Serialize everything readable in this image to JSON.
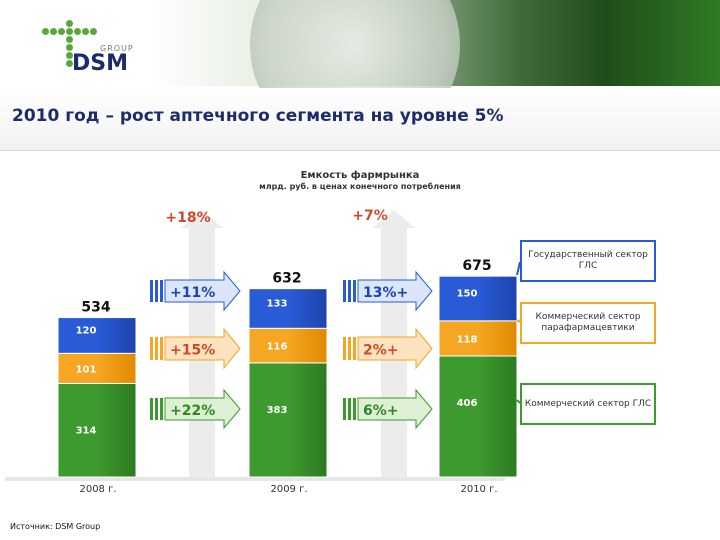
{
  "header": {
    "logo_group": "GROUP",
    "logo_name": "DSM"
  },
  "title": "2010 год – рост аптечного сегмента на уровне 5%",
  "source": "Источник: DSM Group",
  "colors": {
    "gov": "#2a5bd6",
    "para": "#f5a623",
    "com": "#3d9a2e",
    "title": "#1b2c6b"
  },
  "chart_data": {
    "type": "bar",
    "title": "Емкость фармрынка",
    "subtitle": "млрд. руб. в ценах конечного потребления",
    "categories": [
      "2008 г.",
      "2009 г.",
      "2010 г."
    ],
    "totals": [
      534,
      632,
      675
    ],
    "series": [
      {
        "name": "Коммерческий сектор ГЛС",
        "values": [
          314,
          383,
          406
        ]
      },
      {
        "name": "Коммерческий сектор парафармацевтики",
        "values": [
          101,
          116,
          118
        ]
      },
      {
        "name": "Государственный сектор ГЛС",
        "values": [
          120,
          133,
          150
        ]
      }
    ],
    "growth_total": [
      "+18%",
      "+7%"
    ],
    "growth_segments": [
      [
        "+22%",
        "+15%",
        "+11%"
      ],
      [
        "6%+",
        "2%+",
        "13%+"
      ]
    ],
    "ylim": [
      0,
      700
    ]
  }
}
